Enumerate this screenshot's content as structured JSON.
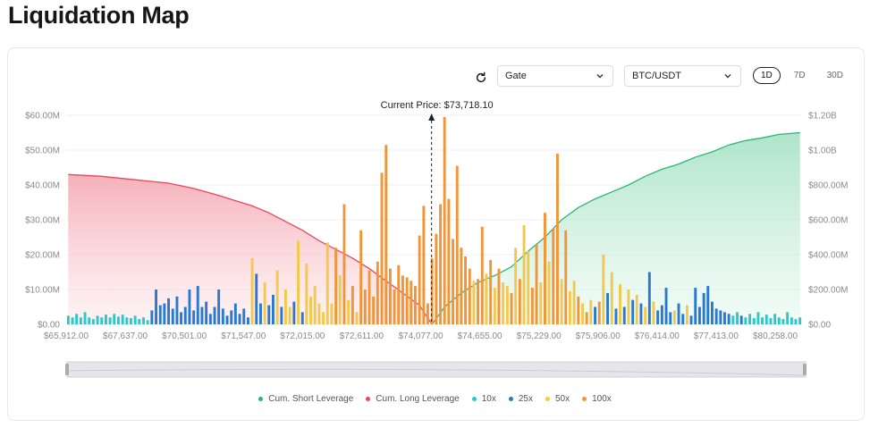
{
  "page_title": "Liquidation Map",
  "controls": {
    "exchange_select": "Gate",
    "pair_select": "BTC/USDT",
    "ranges": [
      "1D",
      "7D",
      "30D"
    ],
    "active_range": "1D"
  },
  "colors": {
    "short": "#2bb673",
    "long": "#e8485c",
    "lev10": "#2ec7c9",
    "lev25": "#2a78d0",
    "lev50": "#f2c94c",
    "lev100": "#f0953a"
  },
  "chart_data": {
    "type": "bar",
    "current_price_label": "Current Price: $73,718.10",
    "current_price": 73718.1,
    "x_tick_labels": [
      "$65,912.00",
      "$67,637.00",
      "$70,501.00",
      "$71,547.00",
      "$72,015.00",
      "$72,611.00",
      "$74,077.00",
      "$74,655.00",
      "$75,229.00",
      "$75,906.00",
      "$76,414.00",
      "$77,413.00",
      "$80,258.00"
    ],
    "y_left": {
      "ticks": [
        "$0.00",
        "$10.00M",
        "$20.00M",
        "$30.00M",
        "$40.00M",
        "$50.00M",
        "$60.00M"
      ],
      "range": [
        0,
        60
      ]
    },
    "y_right": {
      "ticks": [
        "$0.00",
        "$200.00M",
        "$400.00M",
        "$600.00M",
        "$800.00M",
        "$1.00B",
        "$1.20B"
      ],
      "range": [
        0,
        1200
      ]
    },
    "grid": true,
    "legend": [
      {
        "name": "Cum. Short Leverage",
        "color": "#2bb673"
      },
      {
        "name": "Cum. Long Leverage",
        "color": "#e8485c"
      },
      {
        "name": "10x",
        "color": "#2ec7c9"
      },
      {
        "name": "25x",
        "color": "#2a78d0"
      },
      {
        "name": "50x",
        "color": "#f2c94c"
      },
      {
        "name": "100x",
        "color": "#f0953a"
      }
    ],
    "bars_left_axis_millions": [
      {
        "i": 0,
        "lev": "10x",
        "v": 2.5
      },
      {
        "i": 1,
        "lev": "10x",
        "v": 2.0
      },
      {
        "i": 2,
        "lev": "10x",
        "v": 3.0
      },
      {
        "i": 3,
        "lev": "10x",
        "v": 2.0
      },
      {
        "i": 4,
        "lev": "10x",
        "v": 3.5
      },
      {
        "i": 5,
        "lev": "10x",
        "v": 2.0
      },
      {
        "i": 6,
        "lev": "10x",
        "v": 1.5
      },
      {
        "i": 7,
        "lev": "10x",
        "v": 2.5
      },
      {
        "i": 8,
        "lev": "10x",
        "v": 2.0
      },
      {
        "i": 9,
        "lev": "10x",
        "v": 2.8
      },
      {
        "i": 10,
        "lev": "10x",
        "v": 2.0
      },
      {
        "i": 11,
        "lev": "10x",
        "v": 3.0
      },
      {
        "i": 12,
        "lev": "10x",
        "v": 2.2
      },
      {
        "i": 13,
        "lev": "10x",
        "v": 2.8
      },
      {
        "i": 14,
        "lev": "10x",
        "v": 2.0
      },
      {
        "i": 15,
        "lev": "10x",
        "v": 1.8
      },
      {
        "i": 16,
        "lev": "10x",
        "v": 2.5
      },
      {
        "i": 17,
        "lev": "10x",
        "v": 1.5
      },
      {
        "i": 18,
        "lev": "10x",
        "v": 2.0
      },
      {
        "i": 19,
        "lev": "10x",
        "v": 1.2
      },
      {
        "i": 20,
        "lev": "25x",
        "v": 4.0
      },
      {
        "i": 21,
        "lev": "25x",
        "v": 10.0
      },
      {
        "i": 22,
        "lev": "25x",
        "v": 5.5
      },
      {
        "i": 23,
        "lev": "25x",
        "v": 6.0
      },
      {
        "i": 24,
        "lev": "25x",
        "v": 7.5
      },
      {
        "i": 25,
        "lev": "25x",
        "v": 4.5
      },
      {
        "i": 26,
        "lev": "25x",
        "v": 8.0
      },
      {
        "i": 27,
        "lev": "25x",
        "v": 3.5
      },
      {
        "i": 28,
        "lev": "25x",
        "v": 5.0
      },
      {
        "i": 29,
        "lev": "25x",
        "v": 10.0
      },
      {
        "i": 30,
        "lev": "25x",
        "v": 4.0
      },
      {
        "i": 31,
        "lev": "25x",
        "v": 11.0
      },
      {
        "i": 32,
        "lev": "25x",
        "v": 5.0
      },
      {
        "i": 33,
        "lev": "25x",
        "v": 6.5
      },
      {
        "i": 34,
        "lev": "25x",
        "v": 3.0
      },
      {
        "i": 35,
        "lev": "25x",
        "v": 5.0
      },
      {
        "i": 36,
        "lev": "25x",
        "v": 10.0
      },
      {
        "i": 37,
        "lev": "25x",
        "v": 4.5
      },
      {
        "i": 38,
        "lev": "25x",
        "v": 2.5
      },
      {
        "i": 39,
        "lev": "25x",
        "v": 4.0
      },
      {
        "i": 40,
        "lev": "25x",
        "v": 6.0
      },
      {
        "i": 41,
        "lev": "25x",
        "v": 3.0
      },
      {
        "i": 42,
        "lev": "25x",
        "v": 4.5
      },
      {
        "i": 43,
        "lev": "25x",
        "v": 2.0
      },
      {
        "i": 44,
        "lev": "50x",
        "v": 19.0
      },
      {
        "i": 45,
        "lev": "25x",
        "v": 14.5
      },
      {
        "i": 46,
        "lev": "25x",
        "v": 6.0
      },
      {
        "i": 47,
        "lev": "50x",
        "v": 12.0
      },
      {
        "i": 48,
        "lev": "25x",
        "v": 5.5
      },
      {
        "i": 49,
        "lev": "25x",
        "v": 8.5
      },
      {
        "i": 50,
        "lev": "50x",
        "v": 15.5
      },
      {
        "i": 51,
        "lev": "25x",
        "v": 5.0
      },
      {
        "i": 52,
        "lev": "50x",
        "v": 10.0
      },
      {
        "i": 53,
        "lev": "50x",
        "v": 5.0
      },
      {
        "i": 54,
        "lev": "25x",
        "v": 6.5
      },
      {
        "i": 55,
        "lev": "50x",
        "v": 24.0
      },
      {
        "i": 56,
        "lev": "25x",
        "v": 3.5
      },
      {
        "i": 57,
        "lev": "50x",
        "v": 17.5
      },
      {
        "i": 58,
        "lev": "50x",
        "v": 8.0
      },
      {
        "i": 59,
        "lev": "50x",
        "v": 11.0
      },
      {
        "i": 60,
        "lev": "50x",
        "v": 6.0
      },
      {
        "i": 61,
        "lev": "50x",
        "v": 3.5
      },
      {
        "i": 62,
        "lev": "50x",
        "v": 23.5
      },
      {
        "i": 63,
        "lev": "50x",
        "v": 6.0
      },
      {
        "i": 64,
        "lev": "100x",
        "v": 22.0
      },
      {
        "i": 65,
        "lev": "50x",
        "v": 14.0
      },
      {
        "i": 66,
        "lev": "100x",
        "v": 34.5
      },
      {
        "i": 67,
        "lev": "50x",
        "v": 7.0
      },
      {
        "i": 68,
        "lev": "100x",
        "v": 11.0
      },
      {
        "i": 69,
        "lev": "50x",
        "v": 3.5
      },
      {
        "i": 70,
        "lev": "100x",
        "v": 27.0
      },
      {
        "i": 71,
        "lev": "100x",
        "v": 10.0
      },
      {
        "i": 72,
        "lev": "100x",
        "v": 15.5
      },
      {
        "i": 73,
        "lev": "100x",
        "v": 8.0
      },
      {
        "i": 74,
        "lev": "100x",
        "v": 18.0
      },
      {
        "i": 75,
        "lev": "100x",
        "v": 43.5
      },
      {
        "i": 76,
        "lev": "100x",
        "v": 51.5
      },
      {
        "i": 77,
        "lev": "100x",
        "v": 16.0
      },
      {
        "i": 78,
        "lev": "100x",
        "v": 10.0
      },
      {
        "i": 79,
        "lev": "100x",
        "v": 17.0
      },
      {
        "i": 80,
        "lev": "100x",
        "v": 14.0
      },
      {
        "i": 81,
        "lev": "100x",
        "v": 13.5
      },
      {
        "i": 82,
        "lev": "100x",
        "v": 12.5
      },
      {
        "i": 83,
        "lev": "100x",
        "v": 11.0
      },
      {
        "i": 84,
        "lev": "100x",
        "v": 25.5
      },
      {
        "i": 85,
        "lev": "100x",
        "v": 34.0
      },
      {
        "i": 86,
        "lev": "100x",
        "v": 6.0
      },
      {
        "i": 87,
        "lev": "100x",
        "v": 19.0
      },
      {
        "i": 88,
        "lev": "100x",
        "v": 26.0
      },
      {
        "i": 89,
        "lev": "100x",
        "v": 34.5
      },
      {
        "i": 90,
        "lev": "100x",
        "v": 59.5
      },
      {
        "i": 91,
        "lev": "100x",
        "v": 36.0
      },
      {
        "i": 92,
        "lev": "100x",
        "v": 24.5
      },
      {
        "i": 93,
        "lev": "100x",
        "v": 45.5
      },
      {
        "i": 94,
        "lev": "100x",
        "v": 22.0
      },
      {
        "i": 95,
        "lev": "100x",
        "v": 19.5
      },
      {
        "i": 96,
        "lev": "100x",
        "v": 16.0
      },
      {
        "i": 97,
        "lev": "50x",
        "v": 12.5
      },
      {
        "i": 98,
        "lev": "100x",
        "v": 13.0
      },
      {
        "i": 99,
        "lev": "100x",
        "v": 28.0
      },
      {
        "i": 100,
        "lev": "50x",
        "v": 14.5
      },
      {
        "i": 101,
        "lev": "100x",
        "v": 18.5
      },
      {
        "i": 102,
        "lev": "50x",
        "v": 10.5
      },
      {
        "i": 103,
        "lev": "100x",
        "v": 16.0
      },
      {
        "i": 104,
        "lev": "50x",
        "v": 12.0
      },
      {
        "i": 105,
        "lev": "50x",
        "v": 11.0
      },
      {
        "i": 106,
        "lev": "100x",
        "v": 9.0
      },
      {
        "i": 107,
        "lev": "50x",
        "v": 22.0
      },
      {
        "i": 108,
        "lev": "100x",
        "v": 13.0
      },
      {
        "i": 109,
        "lev": "50x",
        "v": 28.5
      },
      {
        "i": 110,
        "lev": "50x",
        "v": 21.0
      },
      {
        "i": 111,
        "lev": "100x",
        "v": 10.5
      },
      {
        "i": 112,
        "lev": "100x",
        "v": 23.0
      },
      {
        "i": 113,
        "lev": "50x",
        "v": 12.0
      },
      {
        "i": 114,
        "lev": "100x",
        "v": 32.0
      },
      {
        "i": 115,
        "lev": "50x",
        "v": 18.0
      },
      {
        "i": 116,
        "lev": "100x",
        "v": 27.5
      },
      {
        "i": 117,
        "lev": "100x",
        "v": 49.0
      },
      {
        "i": 118,
        "lev": "50x",
        "v": 13.0
      },
      {
        "i": 119,
        "lev": "100x",
        "v": 27.0
      },
      {
        "i": 120,
        "lev": "50x",
        "v": 9.5
      },
      {
        "i": 121,
        "lev": "50x",
        "v": 12.5
      },
      {
        "i": 122,
        "lev": "100x",
        "v": 8.0
      },
      {
        "i": 123,
        "lev": "50x",
        "v": 6.0
      },
      {
        "i": 124,
        "lev": "100x",
        "v": 3.5
      },
      {
        "i": 125,
        "lev": "50x",
        "v": 7.0
      },
      {
        "i": 126,
        "lev": "25x",
        "v": 5.0
      },
      {
        "i": 127,
        "lev": "100x",
        "v": 6.5
      },
      {
        "i": 128,
        "lev": "50x",
        "v": 20.0
      },
      {
        "i": 129,
        "lev": "25x",
        "v": 9.0
      },
      {
        "i": 130,
        "lev": "50x",
        "v": 15.0
      },
      {
        "i": 131,
        "lev": "25x",
        "v": 4.5
      },
      {
        "i": 132,
        "lev": "50x",
        "v": 11.5
      },
      {
        "i": 133,
        "lev": "25x",
        "v": 5.0
      },
      {
        "i": 134,
        "lev": "50x",
        "v": 10.0
      },
      {
        "i": 135,
        "lev": "25x",
        "v": 7.0
      },
      {
        "i": 136,
        "lev": "50x",
        "v": 8.5
      },
      {
        "i": 137,
        "lev": "25x",
        "v": 6.0
      },
      {
        "i": 138,
        "lev": "50x",
        "v": 5.0
      },
      {
        "i": 139,
        "lev": "25x",
        "v": 15.0
      },
      {
        "i": 140,
        "lev": "50x",
        "v": 6.5
      },
      {
        "i": 141,
        "lev": "25x",
        "v": 4.0
      },
      {
        "i": 142,
        "lev": "25x",
        "v": 5.5
      },
      {
        "i": 143,
        "lev": "25x",
        "v": 10.5
      },
      {
        "i": 144,
        "lev": "25x",
        "v": 3.5
      },
      {
        "i": 145,
        "lev": "50x",
        "v": 4.0
      },
      {
        "i": 146,
        "lev": "25x",
        "v": 6.0
      },
      {
        "i": 147,
        "lev": "25x",
        "v": 3.0
      },
      {
        "i": 148,
        "lev": "50x",
        "v": 5.5
      },
      {
        "i": 149,
        "lev": "25x",
        "v": 2.5
      },
      {
        "i": 150,
        "lev": "25x",
        "v": 10.5
      },
      {
        "i": 151,
        "lev": "25x",
        "v": 5.0
      },
      {
        "i": 152,
        "lev": "25x",
        "v": 9.0
      },
      {
        "i": 153,
        "lev": "25x",
        "v": 11.0
      },
      {
        "i": 154,
        "lev": "25x",
        "v": 6.5
      },
      {
        "i": 155,
        "lev": "25x",
        "v": 4.5
      },
      {
        "i": 156,
        "lev": "25x",
        "v": 4.0
      },
      {
        "i": 157,
        "lev": "25x",
        "v": 3.5
      },
      {
        "i": 158,
        "lev": "25x",
        "v": 3.0
      },
      {
        "i": 159,
        "lev": "10x",
        "v": 2.5
      },
      {
        "i": 160,
        "lev": "10x",
        "v": 3.5
      },
      {
        "i": 161,
        "lev": "25x",
        "v": 2.5
      },
      {
        "i": 162,
        "lev": "10x",
        "v": 2.0
      },
      {
        "i": 163,
        "lev": "10x",
        "v": 3.0
      },
      {
        "i": 164,
        "lev": "10x",
        "v": 1.8
      },
      {
        "i": 165,
        "lev": "10x",
        "v": 3.5
      },
      {
        "i": 166,
        "lev": "10x",
        "v": 2.0
      },
      {
        "i": 167,
        "lev": "10x",
        "v": 2.8
      },
      {
        "i": 168,
        "lev": "10x",
        "v": 1.8
      },
      {
        "i": 169,
        "lev": "10x",
        "v": 3.0
      },
      {
        "i": 170,
        "lev": "10x",
        "v": 2.0
      },
      {
        "i": 171,
        "lev": "10x",
        "v": 1.5
      },
      {
        "i": 172,
        "lev": "10x",
        "v": 3.5
      },
      {
        "i": 173,
        "lev": "10x",
        "v": 2.0
      },
      {
        "i": 174,
        "lev": "10x",
        "v": 1.5
      },
      {
        "i": 175,
        "lev": "10x",
        "v": 2.0
      }
    ],
    "cum_long_left_axis_millions": [
      [
        0,
        43.0
      ],
      [
        8,
        42.5
      ],
      [
        16,
        41.5
      ],
      [
        24,
        40.5
      ],
      [
        30,
        39.0
      ],
      [
        36,
        37.0
      ],
      [
        40,
        35.5
      ],
      [
        44,
        34.0
      ],
      [
        48,
        32.0
      ],
      [
        52,
        29.5
      ],
      [
        56,
        27.0
      ],
      [
        60,
        24.0
      ],
      [
        64,
        21.5
      ],
      [
        68,
        19.0
      ],
      [
        72,
        16.0
      ],
      [
        76,
        12.5
      ],
      [
        80,
        9.0
      ],
      [
        84,
        5.5
      ],
      [
        87,
        0.0
      ]
    ],
    "cum_short_right_axis_millions": [
      [
        87,
        0
      ],
      [
        90,
        100
      ],
      [
        94,
        180
      ],
      [
        98,
        240
      ],
      [
        102,
        280
      ],
      [
        106,
        330
      ],
      [
        110,
        420
      ],
      [
        114,
        500
      ],
      [
        118,
        600
      ],
      [
        122,
        670
      ],
      [
        126,
        720
      ],
      [
        130,
        760
      ],
      [
        134,
        800
      ],
      [
        138,
        850
      ],
      [
        142,
        890
      ],
      [
        146,
        920
      ],
      [
        150,
        960
      ],
      [
        154,
        990
      ],
      [
        158,
        1030
      ],
      [
        162,
        1055
      ],
      [
        166,
        1070
      ],
      [
        170,
        1090
      ],
      [
        175,
        1100
      ]
    ]
  }
}
